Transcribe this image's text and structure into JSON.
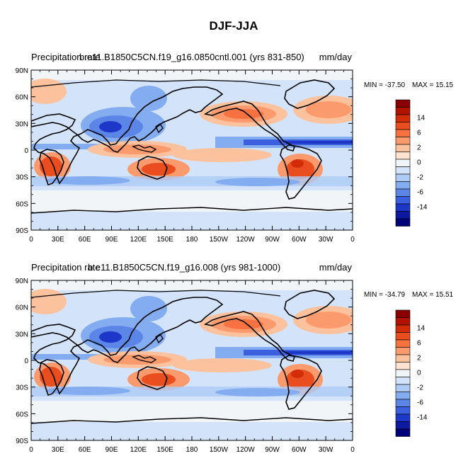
{
  "figure": {
    "title": "DJF-JJA"
  },
  "chart_data": [
    {
      "type": "heatmap",
      "variable": "Precipitation rate",
      "case": "b.e11.B1850C5CN.f19_g16.0850cntl.001 (yrs 831-850)",
      "units": "mm/day",
      "min_label": "MIN = -37.50",
      "max_label": "MAX =  15.15",
      "x_ticks": [
        "0",
        "30E",
        "60E",
        "90E",
        "120E",
        "150E",
        "180",
        "150W",
        "120W",
        "90W",
        "60W",
        "30W",
        "0"
      ],
      "y_ticks": [
        "90N",
        "60N",
        "30N",
        "0",
        "30S",
        "60S",
        "90S"
      ],
      "xlim": [
        0,
        360
      ],
      "ylim": [
        -90,
        90
      ],
      "colorbar_labels": [
        "14",
        "6",
        "2",
        "0",
        "-2",
        "-6",
        "-14"
      ]
    },
    {
      "type": "heatmap",
      "variable": "Precipitation rate",
      "case": "b.e11.B1850C5CN.f19_g16.008 (yrs 981-1000)",
      "units": "mm/day",
      "min_label": "MIN = -34.79",
      "max_label": "MAX =  15.51",
      "x_ticks": [
        "0",
        "30E",
        "60E",
        "90E",
        "120E",
        "150E",
        "180",
        "150W",
        "120W",
        "90W",
        "60W",
        "30W",
        "0"
      ],
      "y_ticks": [
        "90N",
        "60N",
        "30N",
        "0",
        "30S",
        "60S",
        "90S"
      ],
      "xlim": [
        0,
        360
      ],
      "ylim": [
        -90,
        90
      ],
      "colorbar_labels": [
        "14",
        "6",
        "2",
        "0",
        "-2",
        "-6",
        "-14"
      ]
    }
  ],
  "colors": {
    "scale": [
      "#8b0000",
      "#b21200",
      "#d22c09",
      "#ea4d1e",
      "#f77240",
      "#fb9a6d",
      "#fcc29e",
      "#fde3cf",
      "#f2f5f8",
      "#d3e4fa",
      "#aecbf6",
      "#84acf0",
      "#5b86e8",
      "#3c5fe0",
      "#1d37c8",
      "#0c19a0",
      "#00007a"
    ]
  }
}
